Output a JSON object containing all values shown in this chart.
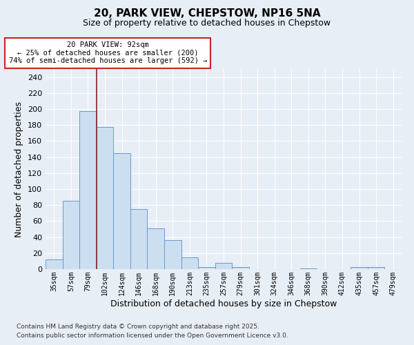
{
  "title1": "20, PARK VIEW, CHEPSTOW, NP16 5NA",
  "title2": "Size of property relative to detached houses in Chepstow",
  "xlabel": "Distribution of detached houses by size in Chepstow",
  "ylabel": "Number of detached properties",
  "categories": [
    "35sqm",
    "57sqm",
    "79sqm",
    "102sqm",
    "124sqm",
    "146sqm",
    "168sqm",
    "190sqm",
    "213sqm",
    "235sqm",
    "257sqm",
    "279sqm",
    "301sqm",
    "324sqm",
    "346sqm",
    "368sqm",
    "390sqm",
    "412sqm",
    "435sqm",
    "457sqm",
    "479sqm"
  ],
  "values": [
    12,
    85,
    197,
    178,
    145,
    75,
    51,
    36,
    15,
    3,
    8,
    3,
    0,
    0,
    0,
    1,
    0,
    0,
    3,
    3,
    0
  ],
  "bar_color": "#ccdff0",
  "bar_edge_color": "#6699cc",
  "background_color": "#e8eef5",
  "grid_color": "#ffffff",
  "vline_x": 2.5,
  "vline_color": "#882222",
  "annotation_text": "20 PARK VIEW: 92sqm\n← 25% of detached houses are smaller (200)\n74% of semi-detached houses are larger (592) →",
  "annotation_box_color": "#ffffff",
  "annotation_box_edge": "#cc2222",
  "footnote1": "Contains HM Land Registry data © Crown copyright and database right 2025.",
  "footnote2": "Contains public sector information licensed under the Open Government Licence v3.0.",
  "ylim": [
    0,
    250
  ],
  "yticks": [
    0,
    20,
    40,
    60,
    80,
    100,
    120,
    140,
    160,
    180,
    200,
    220,
    240
  ]
}
